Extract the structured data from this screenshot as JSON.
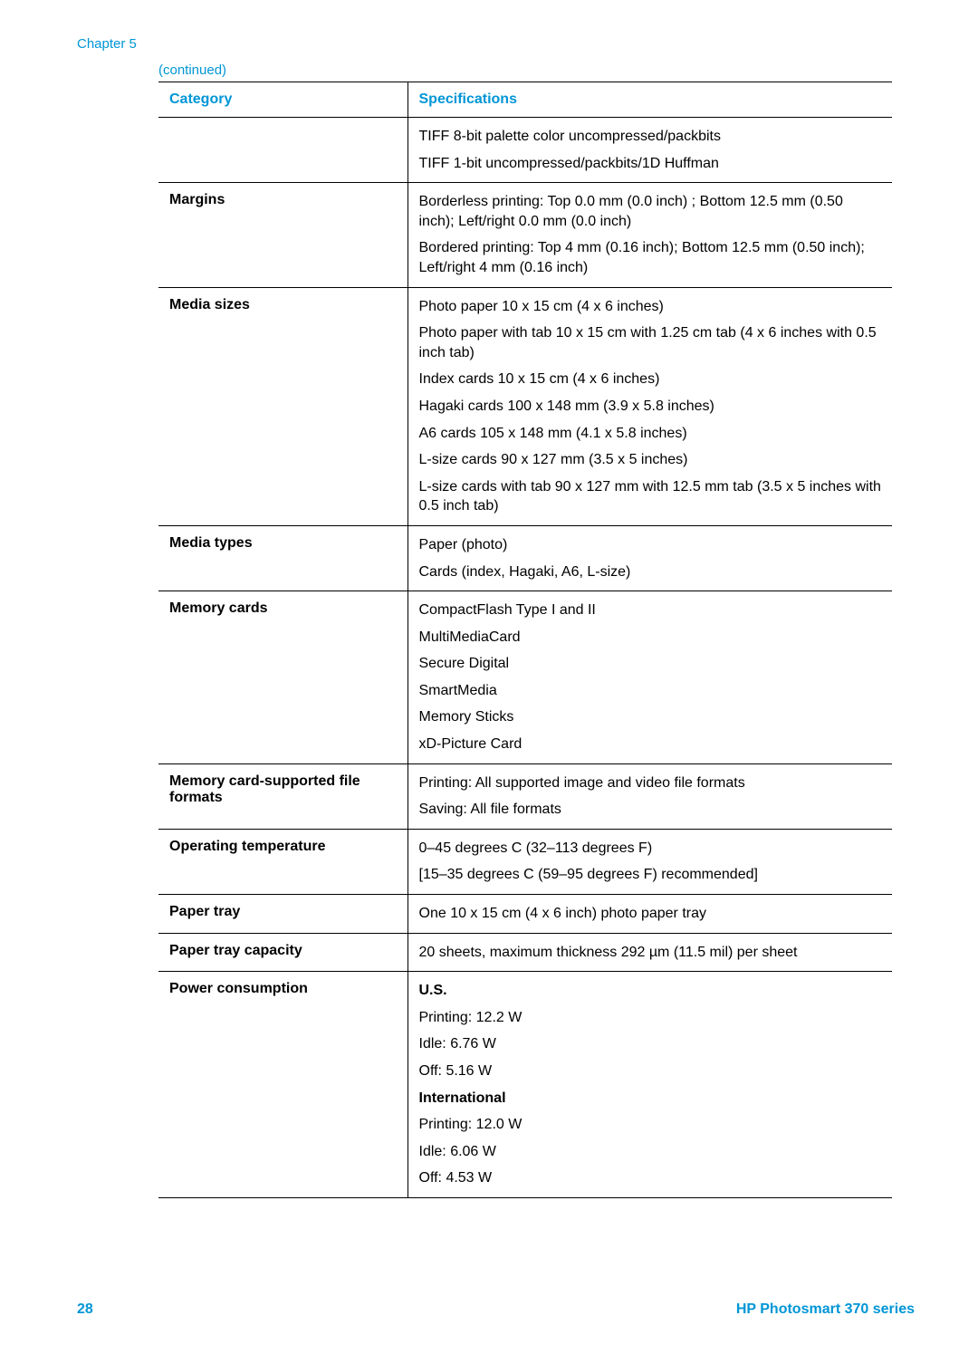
{
  "header": {
    "chapter": "Chapter 5",
    "continued": "(continued)"
  },
  "table": {
    "headers": {
      "category": "Category",
      "specifications": "Specifications"
    },
    "rows": [
      {
        "category": "",
        "specs": [
          {
            "text": "TIFF 8-bit palette color uncompressed/packbits",
            "bold": false
          },
          {
            "text": "TIFF 1-bit uncompressed/packbits/1D Huffman",
            "bold": false
          }
        ]
      },
      {
        "category": "Margins",
        "specs": [
          {
            "text": "Borderless printing: Top 0.0 mm (0.0 inch) ; Bottom 12.5 mm (0.50 inch); Left/right 0.0 mm (0.0 inch)",
            "bold": false
          },
          {
            "text": "Bordered printing: Top 4 mm (0.16 inch); Bottom 12.5 mm (0.50 inch); Left/right 4 mm (0.16 inch)",
            "bold": false
          }
        ]
      },
      {
        "category": "Media sizes",
        "specs": [
          {
            "text": "Photo paper 10 x 15 cm (4 x 6 inches)",
            "bold": false
          },
          {
            "text": "Photo paper with tab 10 x 15 cm with 1.25 cm tab (4 x 6 inches with 0.5 inch tab)",
            "bold": false
          },
          {
            "text": "Index cards 10 x 15 cm (4 x 6 inches)",
            "bold": false
          },
          {
            "text": "Hagaki cards 100 x 148 mm (3.9 x 5.8 inches)",
            "bold": false
          },
          {
            "text": "A6 cards 105 x 148 mm (4.1 x 5.8 inches)",
            "bold": false
          },
          {
            "text": "L-size cards 90 x 127 mm (3.5 x 5 inches)",
            "bold": false
          },
          {
            "text": "L-size cards with tab 90 x 127 mm with 12.5 mm tab (3.5 x 5 inches with 0.5 inch tab)",
            "bold": false
          }
        ]
      },
      {
        "category": "Media types",
        "specs": [
          {
            "text": "Paper (photo)",
            "bold": false
          },
          {
            "text": "Cards (index, Hagaki, A6, L-size)",
            "bold": false
          }
        ]
      },
      {
        "category": "Memory cards",
        "specs": [
          {
            "text": "CompactFlash Type I and II",
            "bold": false
          },
          {
            "text": "MultiMediaCard",
            "bold": false
          },
          {
            "text": "Secure Digital",
            "bold": false
          },
          {
            "text": "SmartMedia",
            "bold": false
          },
          {
            "text": "Memory Sticks",
            "bold": false
          },
          {
            "text": "xD-Picture Card",
            "bold": false
          }
        ]
      },
      {
        "category": "Memory card-supported file formats",
        "specs": [
          {
            "text": "Printing: All supported image and video file formats",
            "bold": false
          },
          {
            "text": "Saving: All file formats",
            "bold": false
          }
        ]
      },
      {
        "category": "Operating temperature",
        "specs": [
          {
            "text": "0–45 degrees C (32–113 degrees F)",
            "bold": false
          },
          {
            "text": "[15–35 degrees C (59–95 degrees F) recommended]",
            "bold": false
          }
        ]
      },
      {
        "category": "Paper tray",
        "specs": [
          {
            "text": "One 10 x 15 cm (4 x 6 inch) photo paper tray",
            "bold": false
          }
        ]
      },
      {
        "category": "Paper tray capacity",
        "specs": [
          {
            "text": "20 sheets, maximum thickness 292 µm (11.5 mil) per sheet",
            "bold": false
          }
        ]
      },
      {
        "category": "Power consumption",
        "specs": [
          {
            "text": "U.S.",
            "bold": true
          },
          {
            "text": "Printing: 12.2 W",
            "bold": false
          },
          {
            "text": "Idle: 6.76 W",
            "bold": false
          },
          {
            "text": "Off: 5.16 W",
            "bold": false
          },
          {
            "text": "International",
            "bold": true
          },
          {
            "text": "Printing: 12.0 W",
            "bold": false
          },
          {
            "text": "Idle: 6.06 W",
            "bold": false
          },
          {
            "text": "Off: 4.53 W",
            "bold": false
          }
        ]
      }
    ]
  },
  "footer": {
    "page_number": "28",
    "title": "HP Photosmart 370 series"
  },
  "colors": {
    "accent": "#0096d6",
    "text": "#000000",
    "background": "#ffffff",
    "border": "#000000"
  }
}
